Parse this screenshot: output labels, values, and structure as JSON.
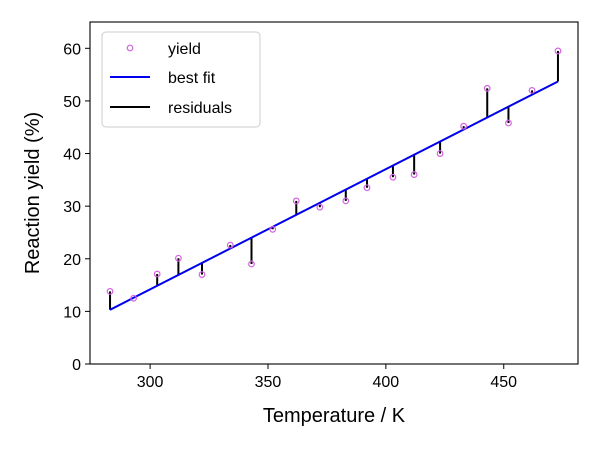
{
  "chart_data": {
    "type": "scatter",
    "title": "",
    "xlabel": "Temperature / K",
    "ylabel": "Reaction yield (%)",
    "xlim": [
      274.5,
      481.5
    ],
    "ylim": [
      0,
      65
    ],
    "xticks": [
      300,
      350,
      400,
      450
    ],
    "yticks": [
      0,
      10,
      20,
      30,
      40,
      50,
      60
    ],
    "grid": false,
    "legend_position": "top-left",
    "series": [
      {
        "name": "yield",
        "kind": "scatter",
        "color": "#d462e0",
        "x": [
          283,
          293,
          303,
          312,
          322,
          334,
          343,
          352,
          362,
          372,
          383,
          392,
          403,
          412,
          423,
          433,
          443,
          452,
          462,
          473
        ],
        "y": [
          13.8,
          12.5,
          17.1,
          20.1,
          17.0,
          22.6,
          19.0,
          25.6,
          31.0,
          29.8,
          31.0,
          33.5,
          35.5,
          36.0,
          40.0,
          45.2,
          52.4,
          45.8,
          52.0,
          59.5
        ]
      },
      {
        "name": "best fit",
        "kind": "line",
        "color": "#0000ee",
        "x": [
          283,
          473
        ],
        "y": [
          10.3,
          53.7
        ]
      },
      {
        "name": "residuals",
        "kind": "residuals",
        "color": "#000000"
      }
    ]
  }
}
